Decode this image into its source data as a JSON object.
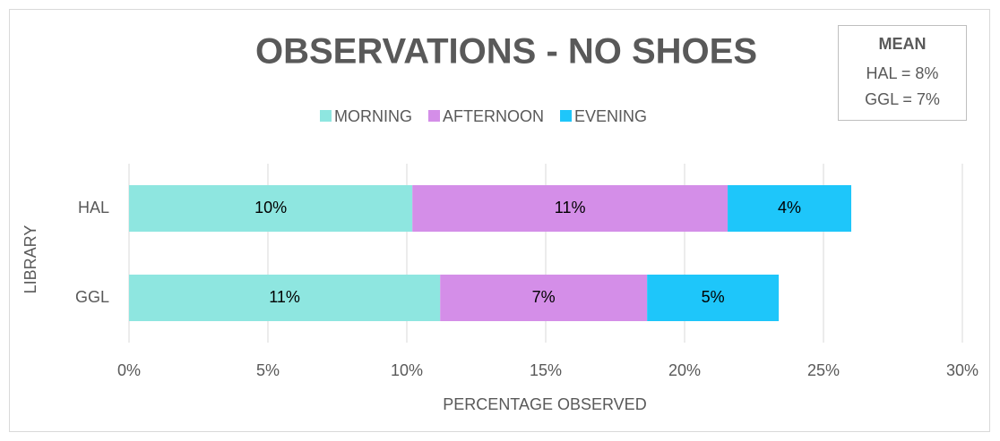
{
  "chart_data": {
    "type": "stacked-bar-horizontal",
    "title": "OBSERVATIONS - NO SHOES",
    "x_label": "PERCENTAGE OBSERVED",
    "y_label": "LIBRARY",
    "categories": [
      "HAL",
      "GGL"
    ],
    "series": [
      {
        "name": "MORNING",
        "color": "#8ee6e0",
        "values": [
          10.2,
          11.2
        ],
        "value_labels": [
          "10%",
          "11%"
        ]
      },
      {
        "name": "AFTERNOON",
        "color": "#d48ee8",
        "values": [
          11.35,
          7.45
        ],
        "value_labels": [
          "11%",
          "7%"
        ]
      },
      {
        "name": "EVENING",
        "color": "#1ec6fa",
        "values": [
          4.45,
          4.74
        ],
        "value_labels": [
          "4%",
          "5%"
        ]
      }
    ],
    "xlim": [
      0,
      30
    ],
    "xticks": [
      {
        "value": 0,
        "label": "0%"
      },
      {
        "value": 5,
        "label": "5%"
      },
      {
        "value": 10,
        "label": "10%"
      },
      {
        "value": 15,
        "label": "15%"
      },
      {
        "value": 20,
        "label": "20%"
      },
      {
        "value": 25,
        "label": "25%"
      },
      {
        "value": 30,
        "label": "30%"
      }
    ],
    "grid": true,
    "legend": "top",
    "annotations": [
      "MEAN",
      "HAL = 8%",
      "GGL = 7%"
    ]
  }
}
